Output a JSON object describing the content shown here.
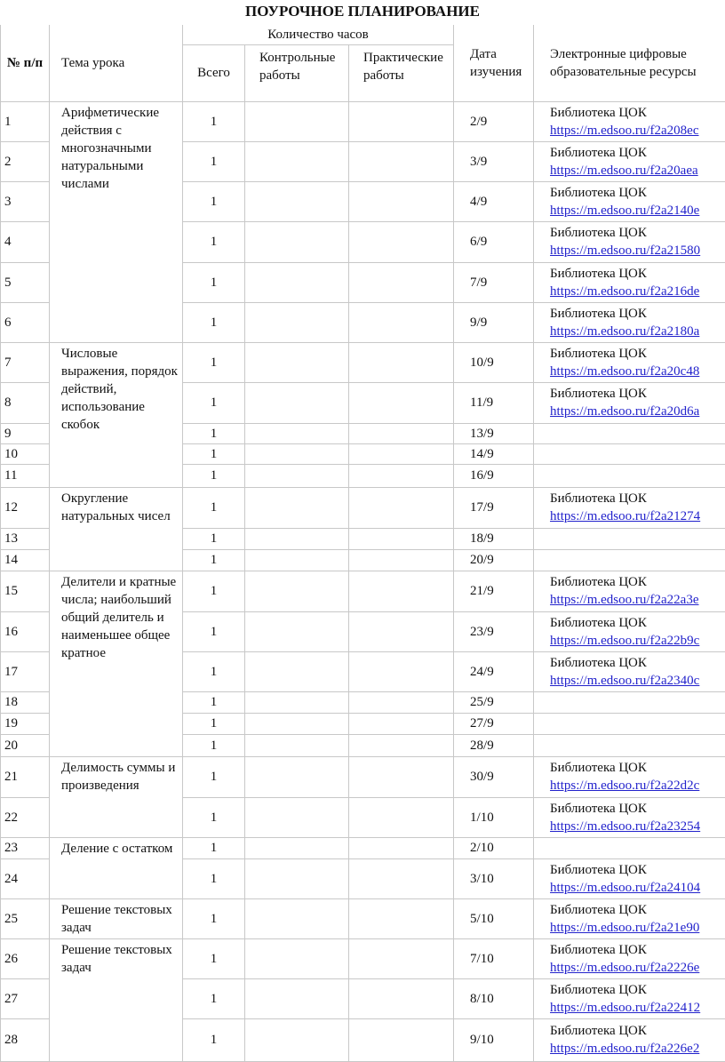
{
  "title": "ПОУРОЧНОЕ ПЛАНИРОВАНИЕ",
  "headers": {
    "num": "№ п/п",
    "topic": "Тема урока",
    "hours": "Количество часов",
    "total": "Всего",
    "control": "Контрольные работы",
    "practical": "Практические работы",
    "date": "Дата изучения",
    "resources": "Электронные цифровые образовательные ресурсы"
  },
  "topics": [
    {
      "label": "Арифметические действия с многозначными натуральными числами",
      "start": 1,
      "span": 6
    },
    {
      "label": "Числовые выражения, порядок действий, использование скобок",
      "start": 7,
      "span": 5
    },
    {
      "label": "Округление натуральных чисел",
      "start": 12,
      "span": 3
    },
    {
      "label": "Делители и кратные числа; наибольший общий делитель и наименьшее общее кратное",
      "start": 15,
      "span": 6
    },
    {
      "label": "Делимость суммы и произведения",
      "start": 21,
      "span": 2
    },
    {
      "label": "Деление с остатком",
      "start": 23,
      "span": 2
    },
    {
      "label": "Решение текстовых задач",
      "start": 25,
      "span": 1
    },
    {
      "label": "Решение текстовых задач",
      "start": 26,
      "span": 3
    }
  ],
  "library_label": "Библиотека ЦОК",
  "rows": [
    {
      "num": "1",
      "total": "1",
      "date": "2/9",
      "link": "https://m.edsoo.ru/f2a208ec"
    },
    {
      "num": "2",
      "total": "1",
      "date": "3/9",
      "link": "https://m.edsoo.ru/f2a20aea"
    },
    {
      "num": "3",
      "total": "1",
      "date": "4/9",
      "link": "https://m.edsoo.ru/f2a2140e"
    },
    {
      "num": "4",
      "total": "1",
      "date": "6/9",
      "link": "https://m.edsoo.ru/f2a21580"
    },
    {
      "num": "5",
      "total": "1",
      "date": "7/9",
      "link": "https://m.edsoo.ru/f2a216de"
    },
    {
      "num": "6",
      "total": "1",
      "date": "9/9",
      "link": "https://m.edsoo.ru/f2a2180a"
    },
    {
      "num": "7",
      "total": "1",
      "date": "10/9",
      "link": "https://m.edsoo.ru/f2a20c48"
    },
    {
      "num": "8",
      "total": "1",
      "date": "11/9",
      "link": "https://m.edsoo.ru/f2a20d6a"
    },
    {
      "num": "9",
      "total": "1",
      "date": "13/9",
      "link": ""
    },
    {
      "num": "10",
      "total": "1",
      "date": "14/9",
      "link": ""
    },
    {
      "num": "11",
      "total": "1",
      "date": "16/9",
      "link": ""
    },
    {
      "num": "12",
      "total": "1",
      "date": "17/9",
      "link": "https://m.edsoo.ru/f2a21274"
    },
    {
      "num": "13",
      "total": "1",
      "date": "18/9",
      "link": ""
    },
    {
      "num": "14",
      "total": "1",
      "date": "20/9",
      "link": ""
    },
    {
      "num": "15",
      "total": "1",
      "date": "21/9",
      "link": "https://m.edsoo.ru/f2a22a3e"
    },
    {
      "num": "16",
      "total": "1",
      "date": "23/9",
      "link": "https://m.edsoo.ru/f2a22b9c"
    },
    {
      "num": "17",
      "total": "1",
      "date": "24/9",
      "link": "https://m.edsoo.ru/f2a2340c"
    },
    {
      "num": "18",
      "total": "1",
      "date": "25/9",
      "link": ""
    },
    {
      "num": "19",
      "total": "1",
      "date": "27/9",
      "link": ""
    },
    {
      "num": "20",
      "total": "1",
      "date": "28/9",
      "link": ""
    },
    {
      "num": "21",
      "total": "1",
      "date": "30/9",
      "link": "https://m.edsoo.ru/f2a22d2c"
    },
    {
      "num": "22",
      "total": "1",
      "date": "1/10",
      "link": "https://m.edsoo.ru/f2a23254"
    },
    {
      "num": "23",
      "total": "1",
      "date": "2/10",
      "link": ""
    },
    {
      "num": "24",
      "total": "1",
      "date": "3/10",
      "link": "https://m.edsoo.ru/f2a24104"
    },
    {
      "num": "25",
      "total": "1",
      "date": "5/10",
      "link": "https://m.edsoo.ru/f2a21e90"
    },
    {
      "num": "26",
      "total": "1",
      "date": "7/10",
      "link": "https://m.edsoo.ru/f2a2226e"
    },
    {
      "num": "27",
      "total": "1",
      "date": "8/10",
      "link": "https://m.edsoo.ru/f2a22412"
    },
    {
      "num": "28",
      "total": "1",
      "date": "9/10",
      "link": "https://m.edsoo.ru/f2a226e2"
    }
  ]
}
